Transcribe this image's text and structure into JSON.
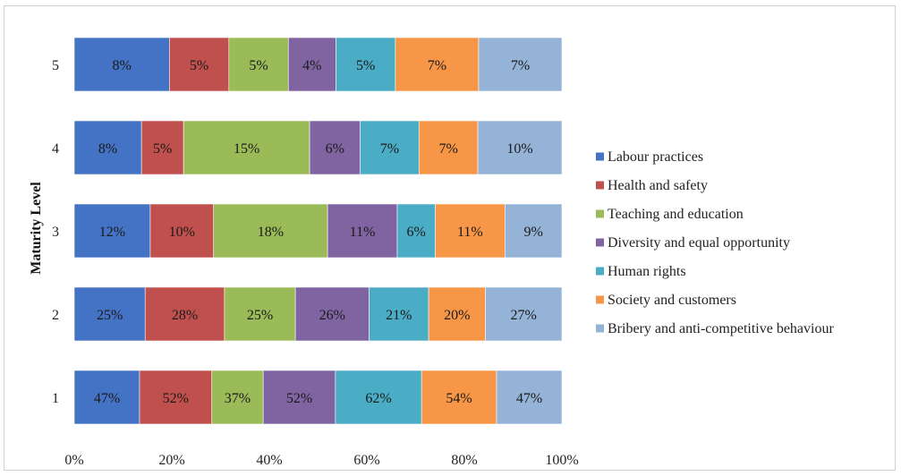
{
  "chart_data": {
    "type": "bar",
    "orientation": "horizontal",
    "stacked": "percent",
    "categories": [
      "1",
      "2",
      "3",
      "4",
      "5"
    ],
    "ylabel": "Maturity Level",
    "xlabel": "",
    "x_ticks": [
      "0%",
      "20%",
      "40%",
      "60%",
      "80%",
      "100%"
    ],
    "xlim": [
      0,
      100
    ],
    "grid": false,
    "legend_position": "right",
    "series": [
      {
        "name": "Labour practices",
        "color": "#4472c4",
        "values": [
          47,
          25,
          12,
          8,
          8
        ],
        "labels": [
          "47%",
          "25%",
          "12%",
          "8%",
          "8%"
        ]
      },
      {
        "name": "Health and safety",
        "color": "#c0504d",
        "values": [
          52,
          28,
          10,
          5,
          5
        ],
        "labels": [
          "52%",
          "28%",
          "10%",
          "5%",
          "5%"
        ]
      },
      {
        "name": "Teaching and education",
        "color": "#9bbb59",
        "values": [
          37,
          25,
          18,
          15,
          5
        ],
        "labels": [
          "37%",
          "25%",
          "18%",
          "15%",
          "5%"
        ]
      },
      {
        "name": "Diversity and equal opportunity",
        "color": "#8064a2",
        "values": [
          52,
          26,
          11,
          6,
          4
        ],
        "labels": [
          "52%",
          "26%",
          "11%",
          "6%",
          "4%"
        ]
      },
      {
        "name": "Human rights",
        "color": "#4bacc6",
        "values": [
          62,
          21,
          6,
          7,
          5
        ],
        "labels": [
          "62%",
          "21%",
          "6%",
          "7%",
          "5%"
        ]
      },
      {
        "name": "Society and customers",
        "color": "#f79646",
        "values": [
          54,
          20,
          11,
          7,
          7
        ],
        "labels": [
          "54%",
          "20%",
          "11%",
          "7%",
          "7%"
        ]
      },
      {
        "name": "Bribery and anti-competitive behaviour",
        "color": "#95b3d7",
        "values": [
          47,
          27,
          9,
          10,
          7
        ],
        "labels": [
          "47%",
          "27%",
          "9%",
          "10%",
          "7%"
        ]
      }
    ]
  }
}
